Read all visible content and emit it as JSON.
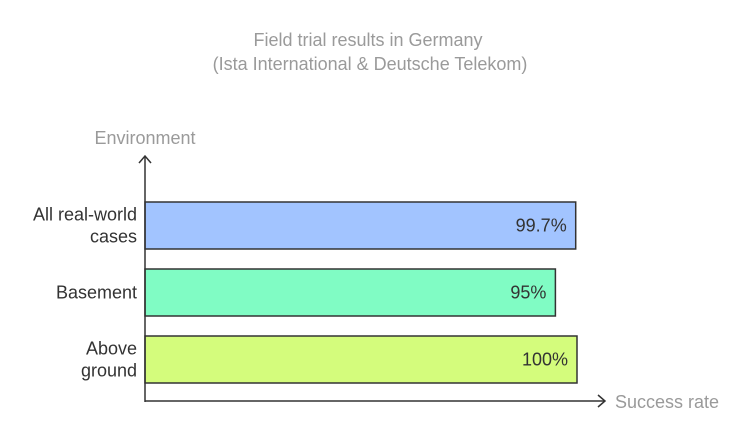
{
  "chart_data": {
    "type": "bar",
    "orientation": "horizontal",
    "title": "Field trial results in Germany",
    "subtitle": "(Ista International & Deutsche Telekom)",
    "xlabel": "Success rate",
    "ylabel": "Environment",
    "xlim": [
      0,
      100
    ],
    "grid": false,
    "categories": [
      [
        "All real-world",
        "cases"
      ],
      [
        "Basement"
      ],
      [
        "Above",
        "ground"
      ]
    ],
    "values": [
      99.7,
      95,
      100
    ],
    "value_labels": [
      "99.7%",
      "95%",
      "100%"
    ],
    "colors": [
      "#a2c4ff",
      "#80fcc4",
      "#d4fc7c"
    ]
  }
}
